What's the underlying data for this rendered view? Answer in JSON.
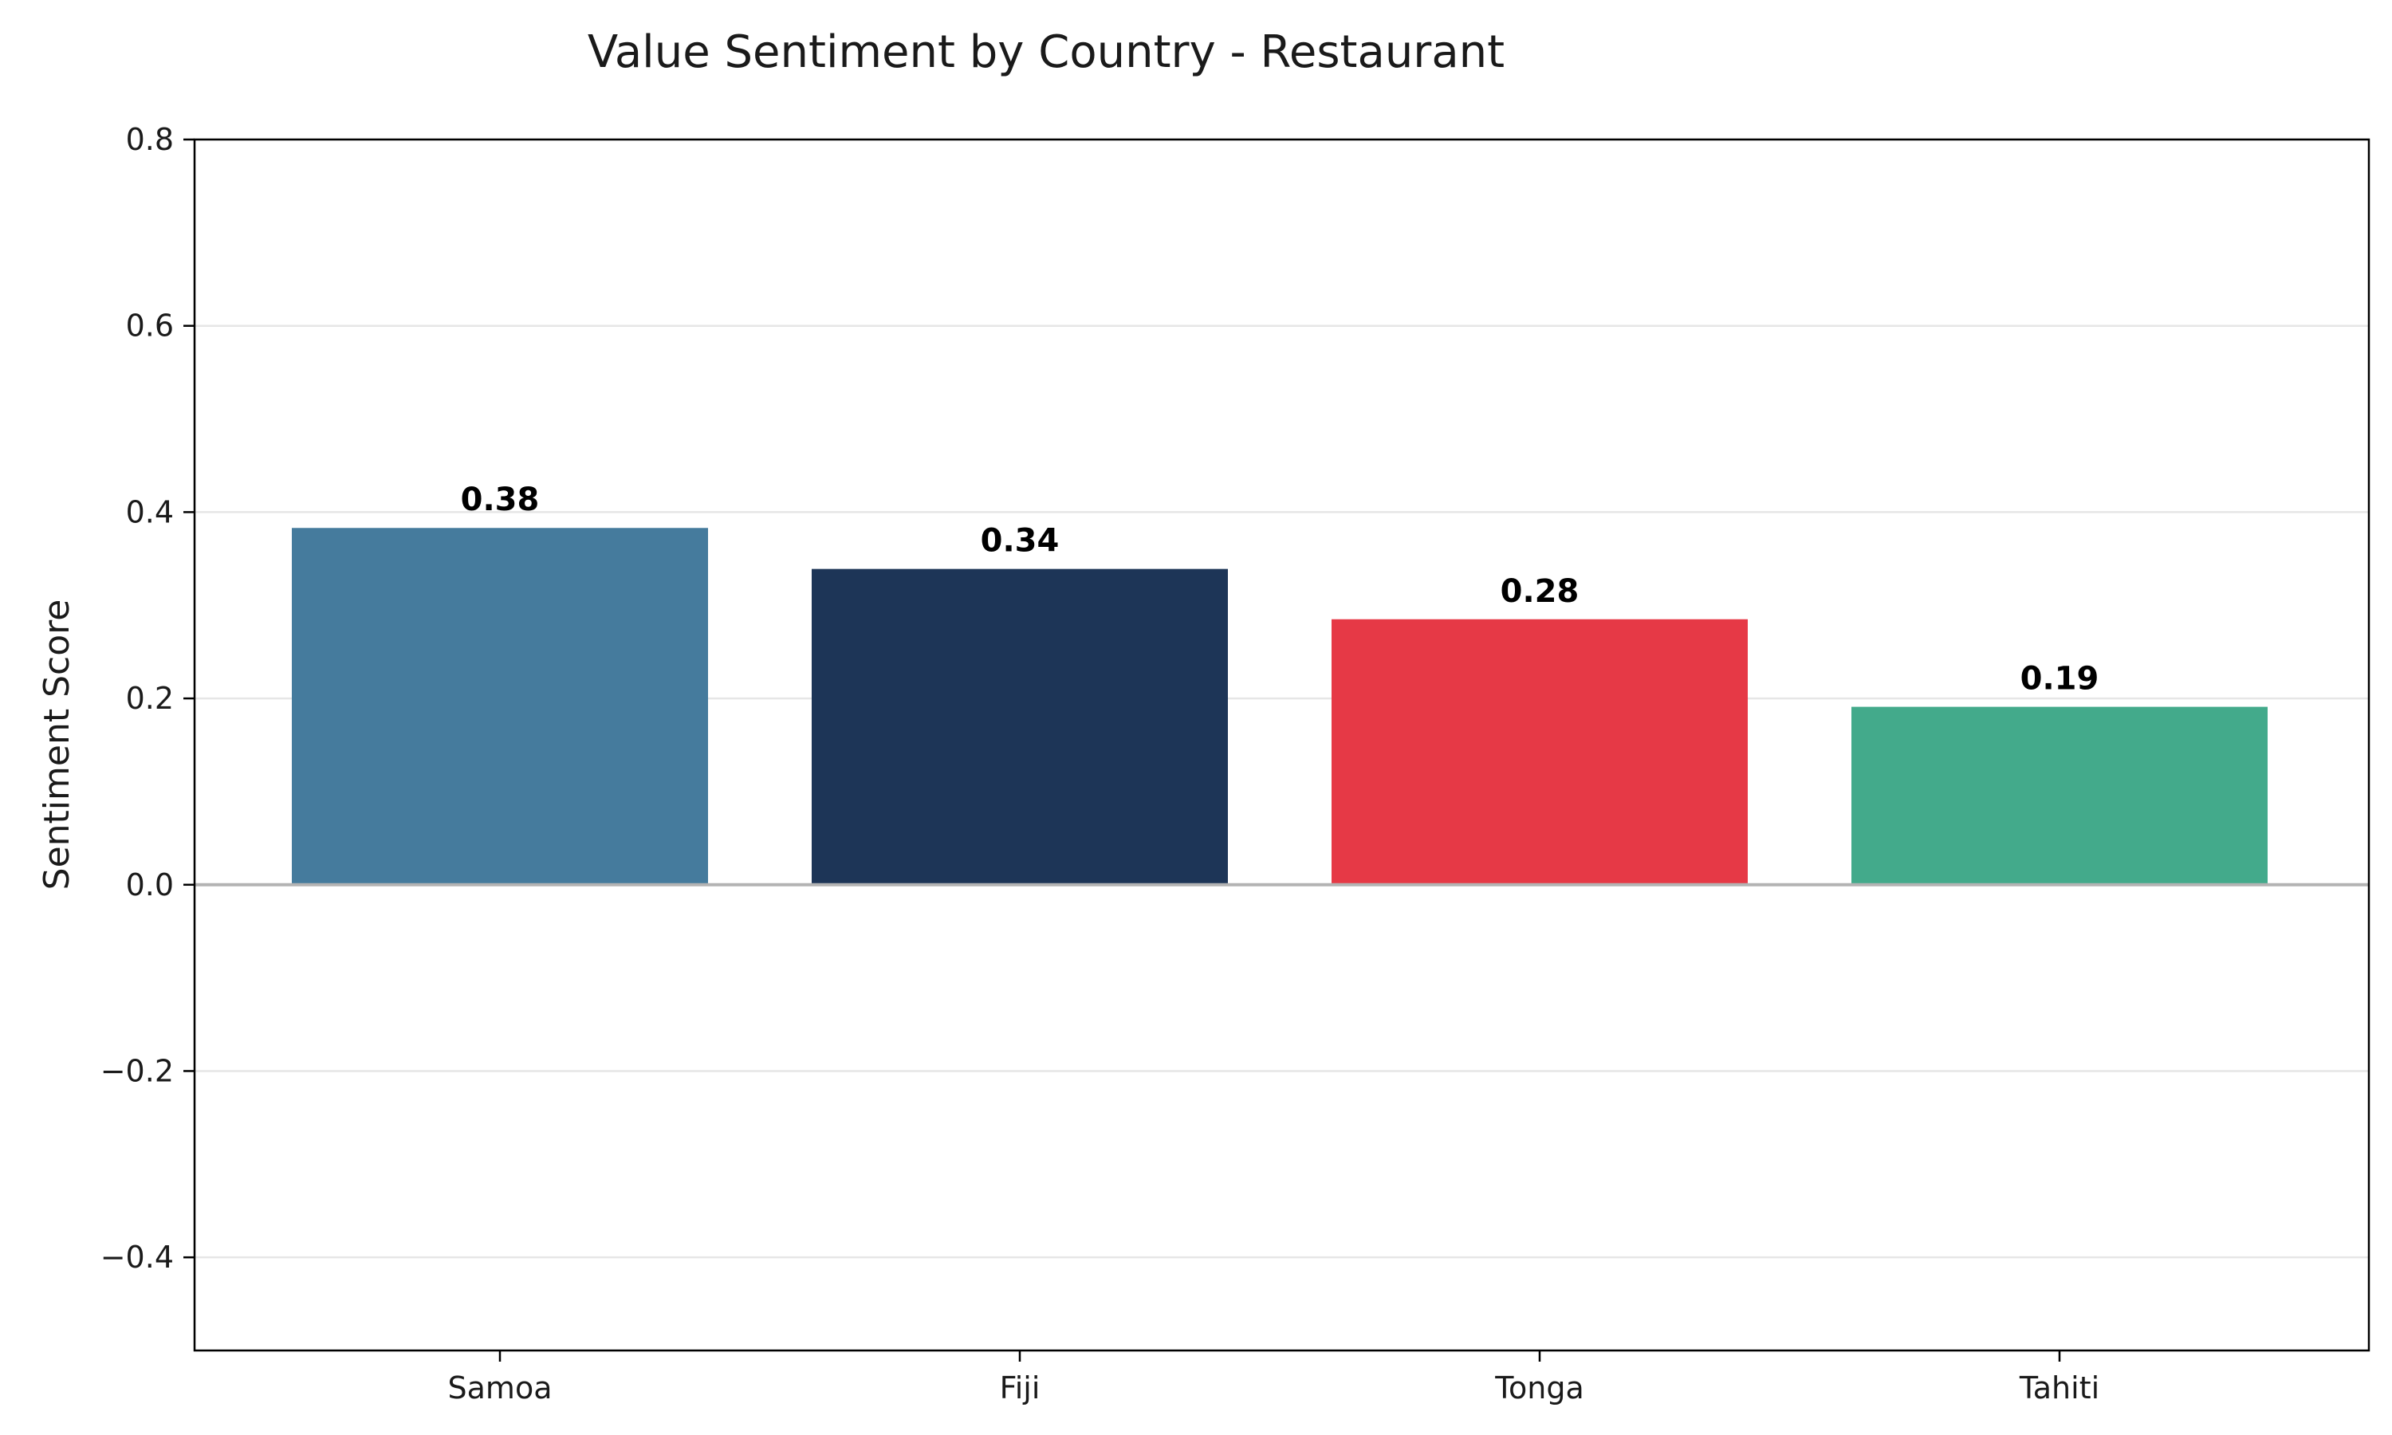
{
  "chart_data": {
    "type": "bar",
    "title": "Value Sentiment by Country - Restaurant",
    "xlabel": "",
    "ylabel": "Sentiment Score",
    "categories": [
      "Samoa",
      "Fiji",
      "Tonga",
      "Tahiti"
    ],
    "values": [
      0.383,
      0.339,
      0.285,
      0.191
    ],
    "value_labels": [
      "0.38",
      "0.34",
      "0.28",
      "0.19"
    ],
    "colors": [
      "#457b9d",
      "#1d3557",
      "#e63946",
      "#43aa8b"
    ],
    "ylim": [
      -0.5,
      0.8
    ],
    "yticks": [
      -0.4,
      -0.2,
      0.0,
      0.2,
      0.4,
      0.6,
      0.8
    ],
    "ytick_labels": [
      "−0.4",
      "−0.2",
      "0.0",
      "0.2",
      "0.4",
      "0.6",
      "0.8"
    ],
    "grid": "horizontal",
    "zero_line": true,
    "legend": "none"
  }
}
